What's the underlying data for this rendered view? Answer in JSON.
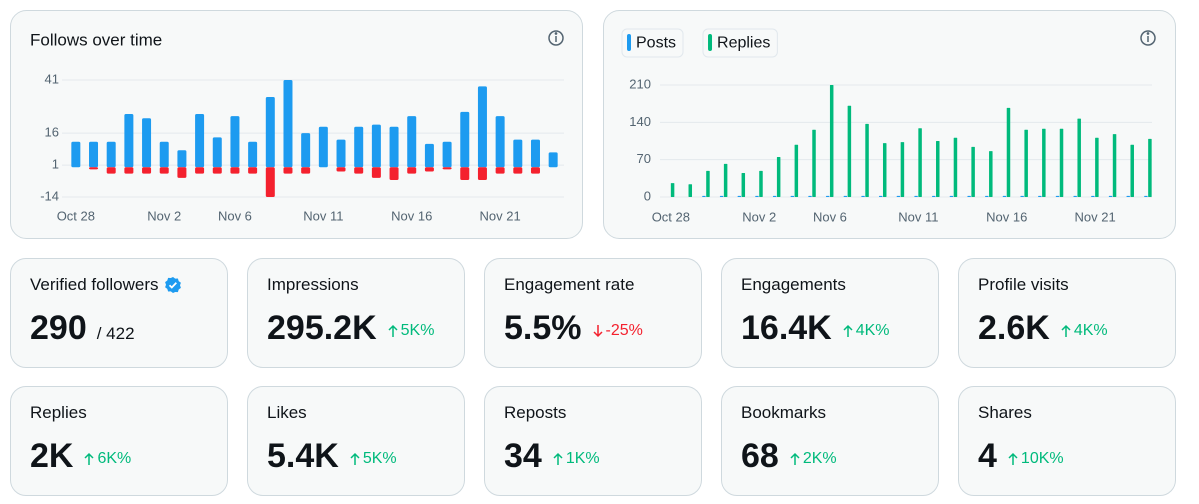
{
  "chart_data": [
    {
      "type": "bar",
      "title": "Follows over time",
      "stacked": true,
      "grid": true,
      "categories": [
        "Oct 28",
        null,
        null,
        null,
        null,
        "Nov 2",
        null,
        null,
        null,
        "Nov 6",
        null,
        null,
        null,
        null,
        "Nov 11",
        null,
        null,
        null,
        null,
        "Nov 16",
        null,
        null,
        null,
        null,
        "Nov 21",
        null,
        null,
        null
      ],
      "series": [
        {
          "color": "#1d9bf0",
          "values": [
            12,
            12,
            12,
            25,
            23,
            12,
            8,
            25,
            14,
            24,
            12,
            33,
            41,
            16,
            19,
            13,
            19,
            20,
            19,
            24,
            11,
            12,
            26,
            38,
            24,
            13,
            13,
            7
          ]
        },
        {
          "color": "#f4212e",
          "values": [
            0,
            -1,
            -3,
            -3,
            -3,
            -3,
            -5,
            -3,
            -3,
            -3,
            -3,
            -14,
            -3,
            -3,
            0,
            -2,
            -3,
            -5,
            -6,
            -3,
            -2,
            -1,
            -6,
            -6,
            -3,
            -3,
            -3,
            0
          ]
        }
      ],
      "ylim": [
        -14,
        41
      ],
      "yticks": [
        41,
        16,
        1,
        -14
      ]
    },
    {
      "type": "bar",
      "stacked": false,
      "grid": true,
      "legend": "top-left",
      "categories": [
        "Oct 28",
        null,
        null,
        null,
        null,
        "Nov 2",
        null,
        null,
        null,
        "Nov 6",
        null,
        null,
        null,
        null,
        "Nov 11",
        null,
        null,
        null,
        null,
        "Nov 16",
        null,
        null,
        null,
        null,
        "Nov 21",
        null,
        null,
        null
      ],
      "series": [
        {
          "name": "Posts",
          "color": "#1d9bf0",
          "values": [
            0,
            0,
            2,
            2,
            2,
            2,
            2,
            2,
            2,
            2,
            2,
            2,
            2,
            2,
            2,
            2,
            2,
            2,
            2,
            2,
            2,
            2,
            2,
            2,
            2,
            2,
            2,
            2
          ]
        },
        {
          "name": "Replies",
          "color": "#00ba7c",
          "values": [
            26,
            24,
            49,
            62,
            45,
            49,
            75,
            98,
            126,
            210,
            171,
            137,
            101,
            103,
            129,
            105,
            111,
            94,
            86,
            167,
            126,
            128,
            128,
            147,
            111,
            118,
            98,
            109
          ]
        }
      ],
      "ylim": [
        0,
        210
      ],
      "yticks": [
        0,
        70,
        140,
        210
      ]
    }
  ],
  "metrics": [
    {
      "label": "Verified followers",
      "value": "290",
      "secondary": "/ 422",
      "verified": true
    },
    {
      "label": "Impressions",
      "value": "295.2K",
      "change": "5K%",
      "direction": "up"
    },
    {
      "label": "Engagement rate",
      "value": "5.5%",
      "change": "-25%",
      "direction": "down"
    },
    {
      "label": "Engagements",
      "value": "16.4K",
      "change": "4K%",
      "direction": "up"
    },
    {
      "label": "Profile visits",
      "value": "2.6K",
      "change": "4K%",
      "direction": "up"
    },
    {
      "label": "Replies",
      "value": "2K",
      "change": "6K%",
      "direction": "up"
    },
    {
      "label": "Likes",
      "value": "5.4K",
      "change": "5K%",
      "direction": "up"
    },
    {
      "label": "Reposts",
      "value": "34",
      "change": "1K%",
      "direction": "up"
    },
    {
      "label": "Bookmarks",
      "value": "68",
      "change": "2K%",
      "direction": "up"
    },
    {
      "label": "Shares",
      "value": "4",
      "change": "10K%",
      "direction": "up"
    }
  ]
}
